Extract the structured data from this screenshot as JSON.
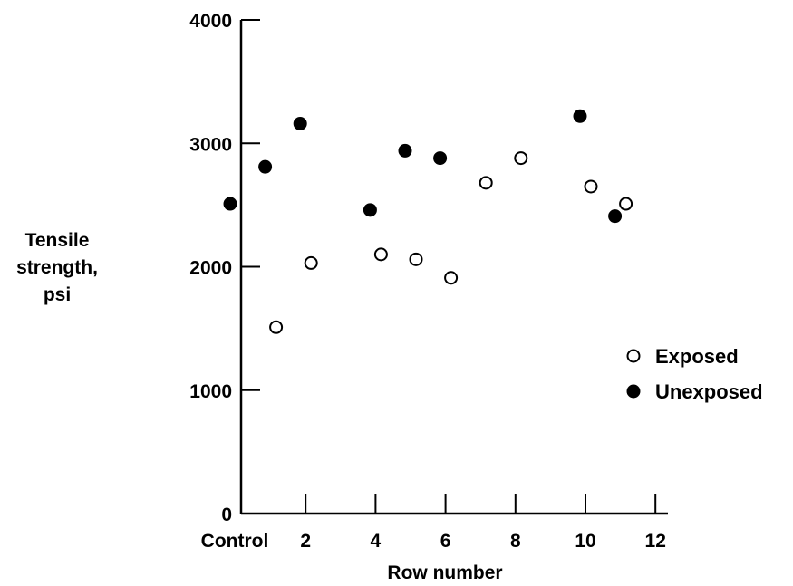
{
  "chart_data": {
    "type": "scatter",
    "title": "",
    "xlabel": "Row number",
    "ylabel_lines": [
      "Tensile",
      "strength,",
      "psi"
    ],
    "xlim": [
      0,
      12
    ],
    "ylim": [
      0,
      4000
    ],
    "x_ticks": [
      {
        "value": 0,
        "label": "Control"
      },
      {
        "value": 2,
        "label": "2"
      },
      {
        "value": 4,
        "label": "4"
      },
      {
        "value": 6,
        "label": "6"
      },
      {
        "value": 8,
        "label": "8"
      },
      {
        "value": 10,
        "label": "10"
      },
      {
        "value": 12,
        "label": "12"
      }
    ],
    "y_ticks": [
      {
        "value": 0,
        "label": "0"
      },
      {
        "value": 1000,
        "label": "1000"
      },
      {
        "value": 2000,
        "label": "2000"
      },
      {
        "value": 3000,
        "label": "3000"
      },
      {
        "value": 4000,
        "label": "4000"
      }
    ],
    "grid": false,
    "legend_position": "right",
    "series": [
      {
        "name": "Exposed",
        "marker": "open-circle",
        "color": "#000000",
        "points": [
          {
            "x": 1,
            "y": 1510
          },
          {
            "x": 2,
            "y": 2030
          },
          {
            "x": 4,
            "y": 2100
          },
          {
            "x": 5,
            "y": 2060
          },
          {
            "x": 6,
            "y": 1910
          },
          {
            "x": 7,
            "y": 2680
          },
          {
            "x": 8,
            "y": 2880
          },
          {
            "x": 10,
            "y": 2650
          },
          {
            "x": 11,
            "y": 2510
          }
        ]
      },
      {
        "name": "Unexposed",
        "marker": "filled-circle",
        "color": "#000000",
        "points": [
          {
            "x": 0,
            "y": 2510
          },
          {
            "x": 1,
            "y": 2810
          },
          {
            "x": 2,
            "y": 3160
          },
          {
            "x": 4,
            "y": 2460
          },
          {
            "x": 5,
            "y": 2940
          },
          {
            "x": 6,
            "y": 2880
          },
          {
            "x": 10,
            "y": 3220
          },
          {
            "x": 11,
            "y": 2410
          }
        ]
      }
    ]
  }
}
